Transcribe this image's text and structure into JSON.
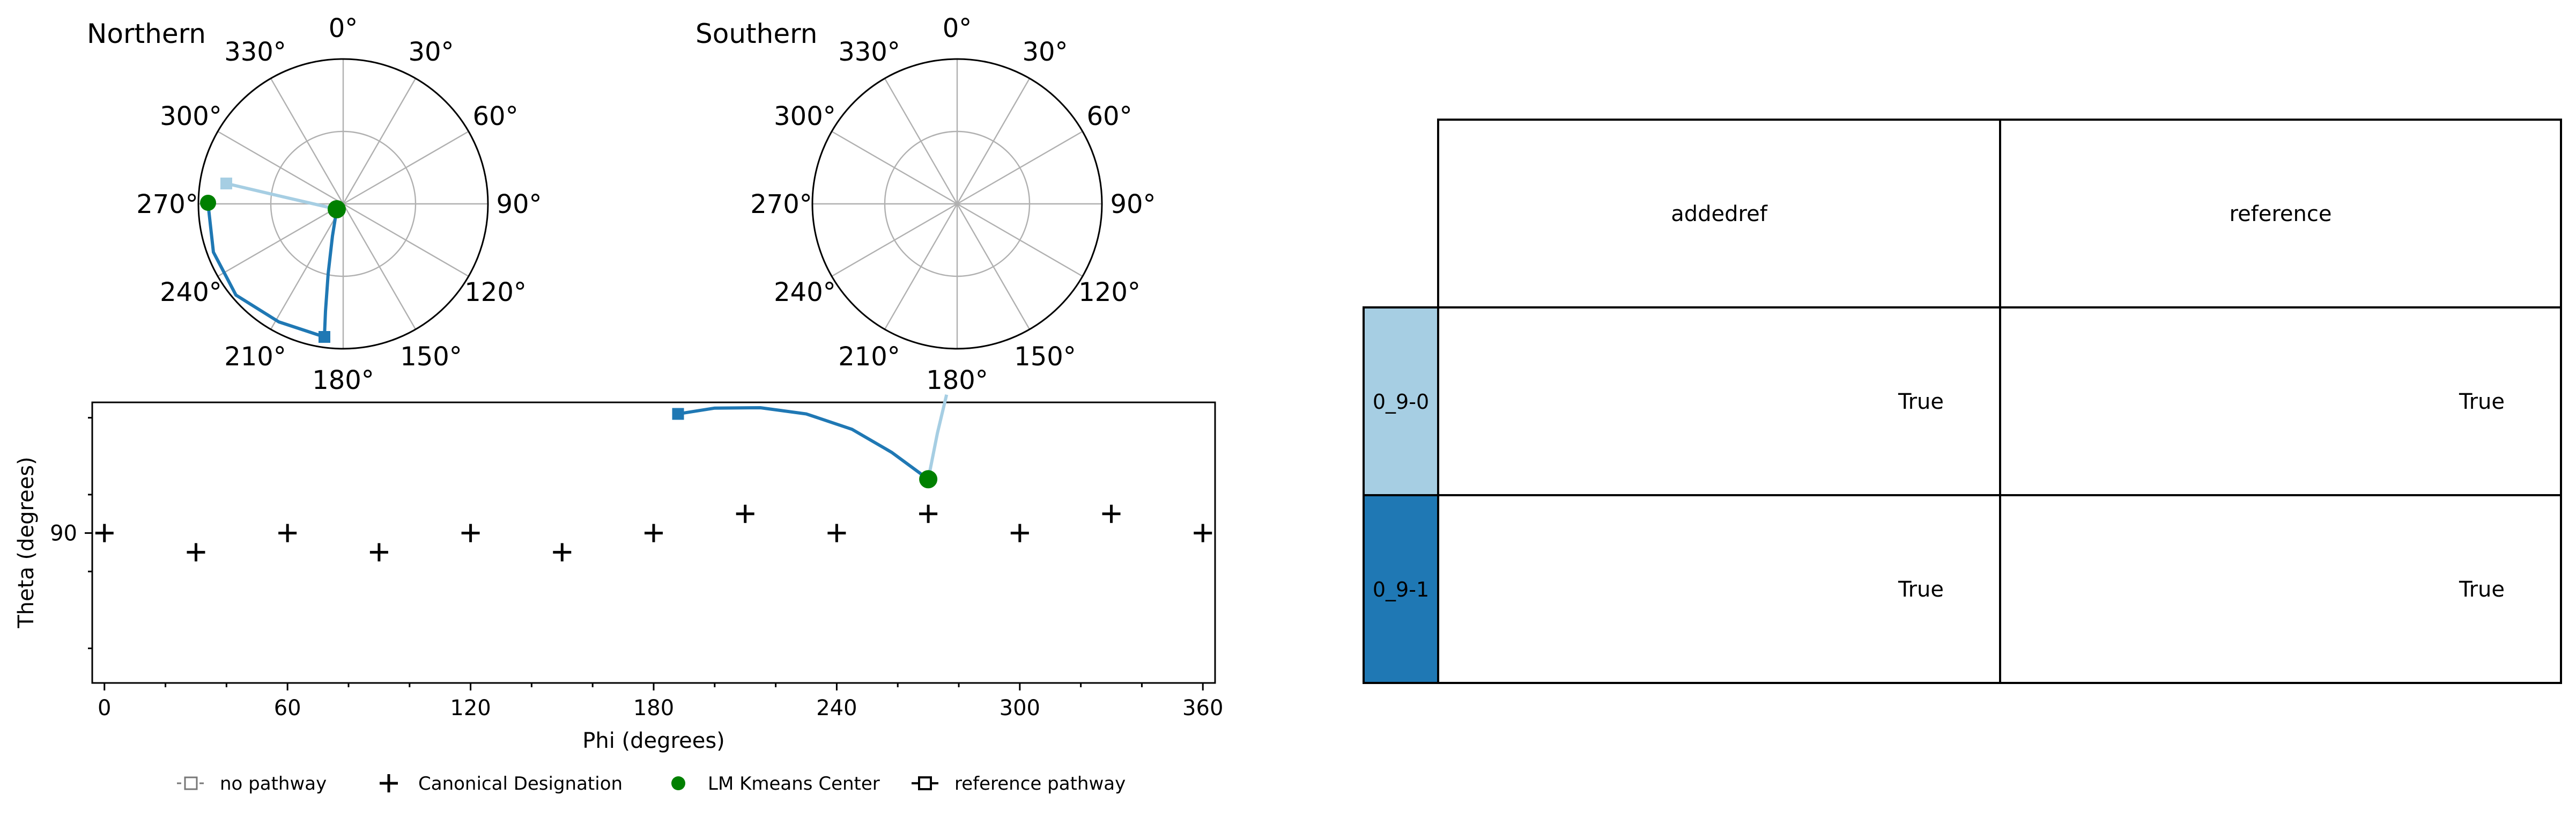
{
  "polar_north": {
    "title": "Northern",
    "angle_labels": [
      "0°",
      "30°",
      "60°",
      "90°",
      "120°",
      "150°",
      "180°",
      "210°",
      "240°",
      "270°",
      "300°",
      "330°"
    ]
  },
  "polar_south": {
    "title": "Southern",
    "angle_labels": [
      "0°",
      "30°",
      "60°",
      "90°",
      "120°",
      "150°",
      "180°",
      "210°",
      "240°",
      "270°",
      "300°",
      "330°"
    ]
  },
  "chart_data": {
    "type": "scatter",
    "xlabel": "Phi (degrees)",
    "ylabel": "Theta (degrees)",
    "xlim": [
      -4,
      364
    ],
    "ylim": [
      51,
      124
    ],
    "xticks": [
      0,
      60,
      120,
      180,
      240,
      300,
      360
    ],
    "yticks": [
      90
    ],
    "grid": false,
    "legend_position": "bottom",
    "canonical_designations": [
      {
        "phi": 0,
        "theta": 90
      },
      {
        "phi": 30,
        "theta": 85
      },
      {
        "phi": 60,
        "theta": 90
      },
      {
        "phi": 90,
        "theta": 85
      },
      {
        "phi": 120,
        "theta": 90
      },
      {
        "phi": 150,
        "theta": 85
      },
      {
        "phi": 180,
        "theta": 90
      },
      {
        "phi": 210,
        "theta": 95
      },
      {
        "phi": 240,
        "theta": 90
      },
      {
        "phi": 270,
        "theta": 95
      },
      {
        "phi": 300,
        "theta": 90
      },
      {
        "phi": 330,
        "theta": 95
      },
      {
        "phi": 360,
        "theta": 90
      }
    ],
    "kmeans_center": {
      "phi": 270,
      "theta": 104
    },
    "pathways": [
      {
        "color": "#a6cee3",
        "points": [
          [
            270,
            104
          ],
          [
            273,
            116
          ],
          [
            276,
            126
          ]
        ]
      },
      {
        "color": "#1f78b4",
        "points": [
          [
            188,
            121
          ],
          [
            200,
            122.5
          ],
          [
            215,
            122.6
          ],
          [
            230,
            121
          ],
          [
            245,
            117
          ],
          [
            258,
            111
          ],
          [
            270,
            104
          ]
        ]
      }
    ],
    "legend": [
      {
        "label": "no pathway",
        "marker": "open-square-dashed"
      },
      {
        "label": "Canonical Designation",
        "marker": "plus"
      },
      {
        "label": "LM Kmeans Center",
        "marker": "green-dot"
      },
      {
        "label": "reference pathway",
        "marker": "open-square-solid"
      }
    ]
  },
  "table": {
    "columns": [
      "addedref",
      "reference"
    ],
    "rows": [
      {
        "label": "0_9-0",
        "color": "#a6cee3",
        "values": [
          "True",
          "True"
        ]
      },
      {
        "label": "0_9-1",
        "color": "#1f78b4",
        "values": [
          "True",
          "True"
        ]
      }
    ]
  }
}
